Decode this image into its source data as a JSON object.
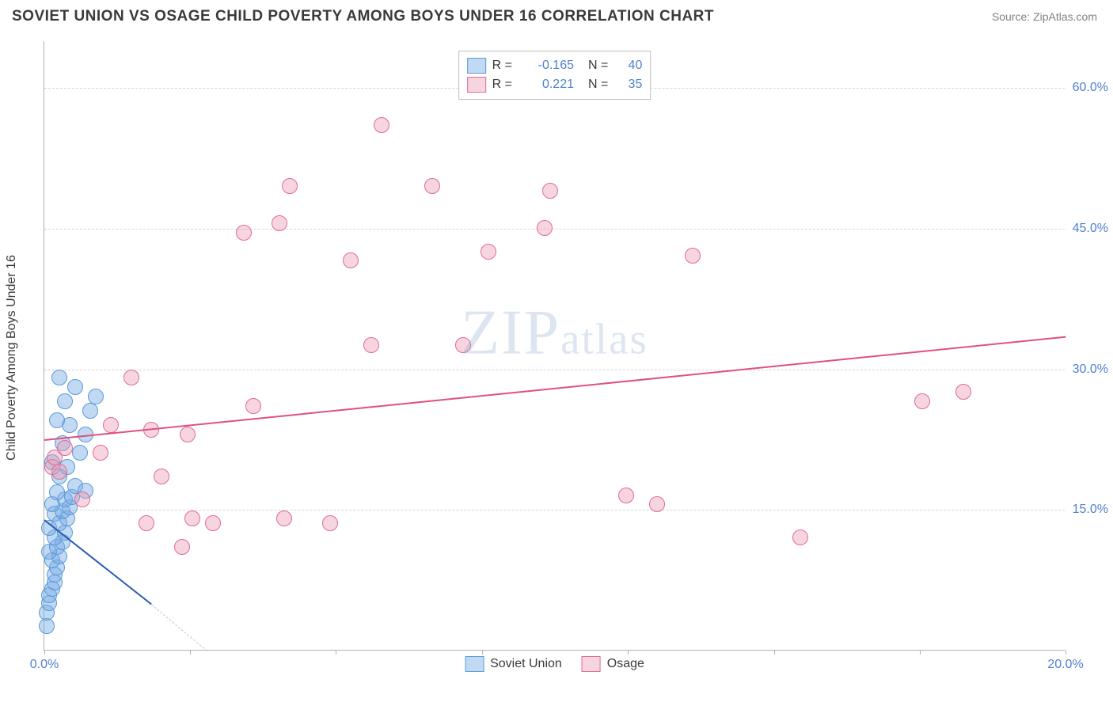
{
  "title": "SOVIET UNION VS OSAGE CHILD POVERTY AMONG BOYS UNDER 16 CORRELATION CHART",
  "source_label": "Source:",
  "source_name": "ZipAtlas.com",
  "ylabel": "Child Poverty Among Boys Under 16",
  "watermark": "ZIPatlas",
  "chart": {
    "type": "scatter",
    "xlim": [
      0,
      20
    ],
    "ylim": [
      0,
      65
    ],
    "xticks": [
      0,
      2.86,
      5.71,
      8.57,
      11.43,
      14.29,
      17.14,
      20
    ],
    "xtick_labels": {
      "0": "0.0%",
      "20": "20.0%"
    },
    "yticks": [
      15,
      30,
      45,
      60
    ],
    "ytick_labels": [
      "15.0%",
      "30.0%",
      "45.0%",
      "60.0%"
    ],
    "grid_color": "#d5d5d5",
    "axis_color": "#b0b0b0",
    "tick_label_color": "#5080d0",
    "background_color": "#ffffff",
    "point_radius": 10,
    "series": [
      {
        "name": "Soviet Union",
        "fill": "rgba(120,170,230,0.45)",
        "stroke": "#5a9bd5",
        "R": "-0.165",
        "N": "40",
        "trend": {
          "x1": 0,
          "y1": 14.0,
          "x2": 2.1,
          "y2": 5.0,
          "color": "#2a5cb0",
          "dash_extend_x": 3.2,
          "dash_extend_y": 0
        },
        "points": [
          [
            0.05,
            2.5
          ],
          [
            0.05,
            4.0
          ],
          [
            0.1,
            5.0
          ],
          [
            0.1,
            5.8
          ],
          [
            0.15,
            6.5
          ],
          [
            0.2,
            7.2
          ],
          [
            0.2,
            8.0
          ],
          [
            0.25,
            8.8
          ],
          [
            0.15,
            9.5
          ],
          [
            0.3,
            10.0
          ],
          [
            0.1,
            10.5
          ],
          [
            0.25,
            11.0
          ],
          [
            0.35,
            11.5
          ],
          [
            0.2,
            12.0
          ],
          [
            0.4,
            12.5
          ],
          [
            0.1,
            13.0
          ],
          [
            0.3,
            13.5
          ],
          [
            0.45,
            14.0
          ],
          [
            0.2,
            14.5
          ],
          [
            0.35,
            14.8
          ],
          [
            0.5,
            15.2
          ],
          [
            0.15,
            15.5
          ],
          [
            0.4,
            16.0
          ],
          [
            0.55,
            16.3
          ],
          [
            0.25,
            16.8
          ],
          [
            0.6,
            17.5
          ],
          [
            0.3,
            18.5
          ],
          [
            0.45,
            19.5
          ],
          [
            0.15,
            20.0
          ],
          [
            0.7,
            21.0
          ],
          [
            0.35,
            22.0
          ],
          [
            0.8,
            23.0
          ],
          [
            0.5,
            24.0
          ],
          [
            0.25,
            24.5
          ],
          [
            0.9,
            25.5
          ],
          [
            0.4,
            26.5
          ],
          [
            1.0,
            27.0
          ],
          [
            0.6,
            28.0
          ],
          [
            0.3,
            29.0
          ],
          [
            0.8,
            17.0
          ]
        ]
      },
      {
        "name": "Osage",
        "fill": "rgba(235,150,175,0.40)",
        "stroke": "#e06b94",
        "R": "0.221",
        "N": "35",
        "trend": {
          "x1": 0,
          "y1": 22.5,
          "x2": 20,
          "y2": 33.5,
          "color": "#e05080"
        },
        "points": [
          [
            0.15,
            19.5
          ],
          [
            0.2,
            20.5
          ],
          [
            0.3,
            19.0
          ],
          [
            0.4,
            21.5
          ],
          [
            0.75,
            16.0
          ],
          [
            1.1,
            21.0
          ],
          [
            1.3,
            24.0
          ],
          [
            1.7,
            29.0
          ],
          [
            2.0,
            13.5
          ],
          [
            2.1,
            23.5
          ],
          [
            2.3,
            18.5
          ],
          [
            2.7,
            11.0
          ],
          [
            2.8,
            23.0
          ],
          [
            2.9,
            14.0
          ],
          [
            3.3,
            13.5
          ],
          [
            3.9,
            44.5
          ],
          [
            4.1,
            26.0
          ],
          [
            4.6,
            45.5
          ],
          [
            4.7,
            14.0
          ],
          [
            4.8,
            49.5
          ],
          [
            5.6,
            13.5
          ],
          [
            6.0,
            41.5
          ],
          [
            6.4,
            32.5
          ],
          [
            6.6,
            56.0
          ],
          [
            7.6,
            49.5
          ],
          [
            8.2,
            32.5
          ],
          [
            8.7,
            42.5
          ],
          [
            9.8,
            45.0
          ],
          [
            11.4,
            16.5
          ],
          [
            12.0,
            15.5
          ],
          [
            12.7,
            42.0
          ],
          [
            14.8,
            12.0
          ],
          [
            17.2,
            26.5
          ],
          [
            18.0,
            27.5
          ],
          [
            9.9,
            49.0
          ]
        ]
      }
    ],
    "legend_top": {
      "r_label": "R =",
      "n_label": "N ="
    }
  }
}
